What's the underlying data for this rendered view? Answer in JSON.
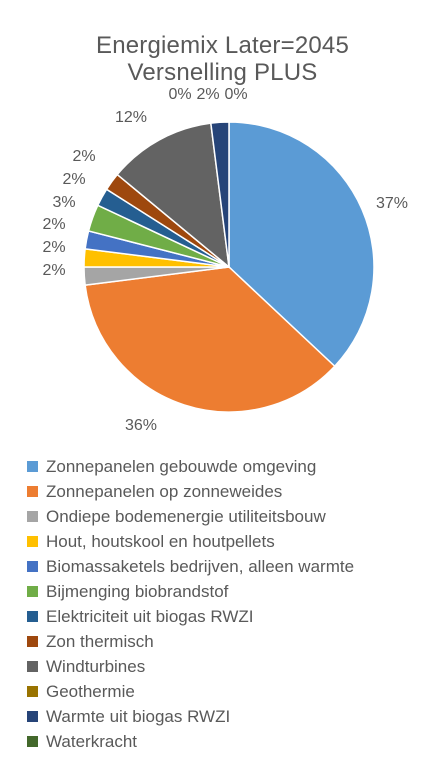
{
  "chart_data": {
    "type": "pie",
    "title": "Energiemix Later=2045",
    "subtitle": "Versnelling  PLUS",
    "series": [
      {
        "label": "Zonnepanelen gebouwde omgeving",
        "value": 37,
        "display": "37%",
        "color": "#5B9BD5"
      },
      {
        "label": "Zonnepanelen op zonneweides",
        "value": 36,
        "display": "36%",
        "color": "#ED7D31"
      },
      {
        "label": "Ondiepe bodemenergie utiliteitsbouw",
        "value": 2,
        "display": "2%",
        "color": "#A5A5A5"
      },
      {
        "label": "Hout, houtskool en houtpellets",
        "value": 2,
        "display": "2%",
        "color": "#FFC000"
      },
      {
        "label": "Biomassaketels bedrijven, alleen warmte",
        "value": 2,
        "display": "2%",
        "color": "#4472C4"
      },
      {
        "label": "Bijmenging biobrandstof",
        "value": 3,
        "display": "3%",
        "color": "#70AD47"
      },
      {
        "label": "Elektriciteit uit biogas RWZI",
        "value": 2,
        "display": "2%",
        "color": "#255E91"
      },
      {
        "label": "Zon thermisch",
        "value": 2,
        "display": "2%",
        "color": "#9E480E"
      },
      {
        "label": "Windturbines",
        "value": 12,
        "display": "12%",
        "color": "#636363"
      },
      {
        "label": "Geothermie",
        "value": 0,
        "display": "0%",
        "color": "#997300"
      },
      {
        "label": "Warmte uit biogas RWZI",
        "value": 2,
        "display": "2%",
        "color": "#264478"
      },
      {
        "label": "Waterkracht",
        "value": 0,
        "display": "0%",
        "color": "#43682B"
      }
    ],
    "legend_position": "bottom"
  }
}
